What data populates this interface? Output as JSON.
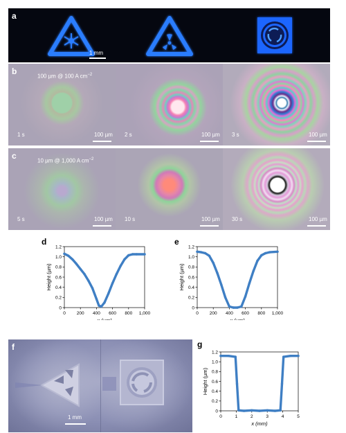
{
  "panels": {
    "a": {
      "label": "a",
      "scale_label": "1 mm",
      "icons": [
        "snowflake-triangle-icon",
        "radiation-triangle-icon",
        "recycle-square-icon"
      ],
      "glow_color": "#2a7dff"
    },
    "b": {
      "label": "b",
      "condition": "100 µm @ 100 A cm",
      "exponent": "−2",
      "tiles": [
        {
          "time": "1 s",
          "scale": "100 µm"
        },
        {
          "time": "2 s",
          "scale": "100 µm"
        },
        {
          "time": "3 s",
          "scale": "100 µm"
        }
      ]
    },
    "c": {
      "label": "c",
      "condition": "10 µm @ 1,000 A cm",
      "exponent": "−2",
      "tiles": [
        {
          "time": "5 s",
          "scale": "100 µm"
        },
        {
          "time": "10 s",
          "scale": "100 µm"
        },
        {
          "time": "30 s",
          "scale": "100 µm"
        }
      ]
    },
    "f": {
      "label": "f",
      "scale_label": "1 mm"
    }
  },
  "chart_data": [
    {
      "id": "d",
      "label": "d",
      "type": "line",
      "xlabel": "x (µm)",
      "ylabel": "Height (µm)",
      "xlim": [
        0,
        1000
      ],
      "ylim": [
        0,
        1.2
      ],
      "xticks": [
        "0",
        "200",
        "400",
        "600",
        "800",
        "1,000"
      ],
      "yticks": [
        "0",
        "0.2",
        "0.4",
        "0.6",
        "0.8",
        "1.0",
        "1.2"
      ],
      "color": "#3f7fc4",
      "x": [
        0,
        50,
        100,
        150,
        200,
        250,
        300,
        350,
        400,
        430,
        460,
        500,
        550,
        600,
        650,
        700,
        750,
        800,
        850,
        900,
        1000
      ],
      "y": [
        1.06,
        1.02,
        0.95,
        0.86,
        0.76,
        0.66,
        0.53,
        0.38,
        0.17,
        0.04,
        0.02,
        0.1,
        0.28,
        0.48,
        0.66,
        0.82,
        0.95,
        1.03,
        1.05,
        1.05,
        1.05
      ]
    },
    {
      "id": "e",
      "label": "e",
      "type": "line",
      "xlabel": "x (µm)",
      "ylabel": "Height (µm)",
      "xlim": [
        0,
        1000
      ],
      "ylim": [
        0,
        1.2
      ],
      "xticks": [
        "0",
        "200",
        "400",
        "600",
        "800",
        "1,000"
      ],
      "yticks": [
        "0",
        "0.2",
        "0.4",
        "0.6",
        "0.8",
        "1.0",
        "1.2"
      ],
      "color": "#3f7fc4",
      "x": [
        0,
        50,
        100,
        150,
        200,
        250,
        300,
        350,
        400,
        450,
        500,
        550,
        600,
        650,
        700,
        750,
        800,
        850,
        900,
        1000
      ],
      "y": [
        1.1,
        1.09,
        1.07,
        1.02,
        0.88,
        0.68,
        0.45,
        0.2,
        0.02,
        0.0,
        0.0,
        0.02,
        0.22,
        0.48,
        0.72,
        0.92,
        1.03,
        1.07,
        1.09,
        1.1
      ]
    },
    {
      "id": "g",
      "label": "g",
      "type": "line",
      "xlabel": "x (mm)",
      "ylabel": "Height (µm)",
      "xlim": [
        0,
        5
      ],
      "ylim": [
        0,
        1.2
      ],
      "xticks": [
        "0",
        "1",
        "2",
        "3",
        "4",
        "5"
      ],
      "yticks": [
        "0",
        "0.2",
        "0.4",
        "0.6",
        "0.8",
        "1.0",
        "1.2"
      ],
      "color": "#3f7fc4",
      "x": [
        0,
        0.5,
        0.95,
        1.05,
        1.15,
        1.5,
        2,
        2.5,
        3,
        3.5,
        3.85,
        3.95,
        4.05,
        4.5,
        5
      ],
      "y": [
        1.12,
        1.12,
        1.1,
        0.55,
        0.01,
        0.0,
        0.01,
        0.0,
        0.01,
        0.0,
        0.01,
        0.55,
        1.1,
        1.12,
        1.12
      ]
    }
  ]
}
